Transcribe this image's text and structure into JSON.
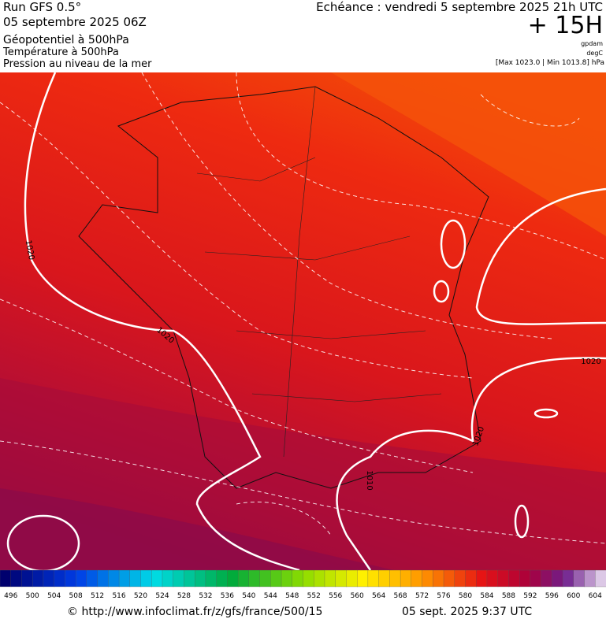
{
  "header": {
    "run": "Run GFS 0.5°",
    "date": "05 septembre 2025 06Z",
    "layer1": "Géopotentiel à 500hPa",
    "layer2": "Température à 500hPa",
    "layer3": "Pression au niveau de la mer",
    "echeance": "Echéance : vendredi 5 septembre 2025 21h UTC",
    "offset": "+ 15H",
    "unit1": "gpdam",
    "unit2": "degC",
    "range": "[Max 1023.0 | Min 1013.8] hPa"
  },
  "map": {
    "contour_labels": [
      "1020",
      "1020",
      "1020",
      "1020",
      "1010"
    ]
  },
  "colorbar": {
    "labels": [
      496,
      500,
      504,
      508,
      512,
      516,
      520,
      524,
      528,
      532,
      536,
      540,
      544,
      548,
      552,
      556,
      560,
      564,
      568,
      572,
      576,
      580,
      584,
      588,
      592,
      596,
      600,
      604
    ]
  },
  "footer": {
    "source": "© http://www.infoclimat.fr/z/gfs/france/500/15",
    "generated": "05 sept. 2025  9:37 UTC"
  }
}
